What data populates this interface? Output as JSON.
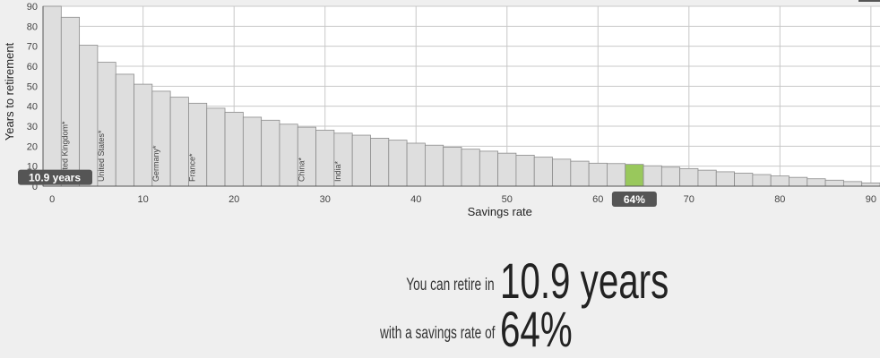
{
  "chart_data": {
    "type": "bar",
    "xlabel": "Savings rate",
    "ylabel": "Years to retirement",
    "xlim": [
      -1,
      91
    ],
    "ylim": [
      0,
      90
    ],
    "x_ticks": [
      0,
      10,
      20,
      30,
      40,
      50,
      60,
      70,
      80,
      90
    ],
    "y_ticks": [
      0,
      10,
      20,
      30,
      40,
      50,
      60,
      70,
      80,
      90
    ],
    "grid": true,
    "bar_width": 2,
    "x": [
      0,
      2,
      4,
      6,
      8,
      10,
      12,
      14,
      16,
      18,
      20,
      22,
      24,
      26,
      28,
      30,
      32,
      34,
      36,
      38,
      40,
      42,
      44,
      46,
      48,
      50,
      52,
      54,
      56,
      58,
      60,
      62,
      64,
      66,
      68,
      70,
      72,
      74,
      76,
      78,
      80,
      82,
      84,
      86,
      88,
      90
    ],
    "values": [
      90,
      84.5,
      70.5,
      62,
      56,
      51,
      47.5,
      44.5,
      41.5,
      39,
      37,
      34.5,
      33,
      31,
      29.5,
      28,
      26.5,
      25.5,
      24,
      23,
      21.5,
      20.5,
      19.5,
      18.5,
      17.5,
      16.5,
      15.5,
      14.5,
      13.5,
      12.5,
      11.5,
      11.3,
      10.9,
      10.2,
      9.5,
      8.8,
      8.0,
      7.2,
      6.5,
      5.8,
      5.1,
      4.4,
      3.7,
      3.0,
      2.3,
      1.6
    ],
    "highlight_x": 64,
    "highlight_color": "#99c85c",
    "bar_color": "#dedede",
    "bar_stroke": "#8c8c8c",
    "countries": [
      {
        "name": "United Kingdom*",
        "x": 1.4
      },
      {
        "name": "United States*",
        "x": 5.4
      },
      {
        "name": "Germany*",
        "x": 11.4
      },
      {
        "name": "France*",
        "x": 15.4
      },
      {
        "name": "China*",
        "x": 27.4
      },
      {
        "name": "India*",
        "x": 31.4
      }
    ],
    "y_marker": {
      "label": "10.9 years",
      "value": 10.9
    },
    "x_marker": {
      "label": "64%",
      "value": 64
    }
  },
  "result": {
    "line1_prefix": "You can retire in",
    "line1_value": "10.9 years",
    "line2_prefix": "with a savings rate of",
    "line2_value": "64%"
  }
}
